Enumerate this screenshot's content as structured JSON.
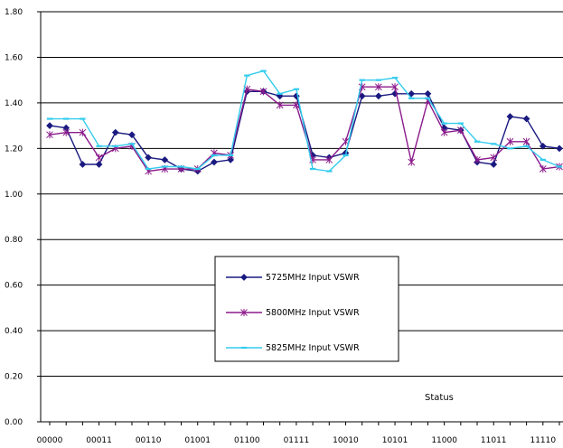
{
  "chart_data": {
    "type": "line",
    "title": "",
    "xlabel": "Status",
    "ylabel": "",
    "ylim": [
      0,
      1.8
    ],
    "yticks": [
      "0.00",
      "0.20",
      "0.40",
      "0.60",
      "0.80",
      "1.00",
      "1.20",
      "1.40",
      "1.60",
      "1.80"
    ],
    "x_tick_labels": [
      "00000",
      "00011",
      "00110",
      "01001",
      "01100",
      "01111",
      "10010",
      "10101",
      "11000",
      "11011",
      "11110"
    ],
    "grid": "horizontal",
    "legend_position": "center",
    "x": [
      "00000",
      "00001",
      "00010",
      "00011",
      "00100",
      "00101",
      "00110",
      "00111",
      "01000",
      "01001",
      "01010",
      "01011",
      "01100",
      "01101",
      "01110",
      "01111",
      "10000",
      "10001",
      "10010",
      "10011",
      "10100",
      "10101",
      "10110",
      "10111",
      "11000",
      "11001",
      "11010",
      "11011",
      "11100",
      "11101",
      "11110",
      "11111"
    ],
    "series": [
      {
        "name": "5725MHz Input VSWR",
        "color": "#1a1a80",
        "marker": "diamond",
        "values": [
          1.3,
          1.29,
          1.13,
          1.13,
          1.27,
          1.26,
          1.16,
          1.15,
          1.11,
          1.1,
          1.14,
          1.15,
          1.45,
          1.45,
          1.43,
          1.43,
          1.17,
          1.16,
          1.18,
          1.43,
          1.43,
          1.44,
          1.44,
          1.44,
          1.29,
          1.28,
          1.14,
          1.13,
          1.34,
          1.33,
          1.21,
          1.2
        ]
      },
      {
        "name": "5800MHz Input VSWR",
        "color": "#8b1a8b",
        "marker": "star",
        "values": [
          1.26,
          1.27,
          1.27,
          1.16,
          1.2,
          1.21,
          1.1,
          1.11,
          1.11,
          1.11,
          1.18,
          1.17,
          1.46,
          1.45,
          1.39,
          1.39,
          1.15,
          1.15,
          1.23,
          1.47,
          1.47,
          1.47,
          1.14,
          1.41,
          1.27,
          1.28,
          1.15,
          1.16,
          1.23,
          1.23,
          1.11,
          1.12
        ]
      },
      {
        "name": "5825MHz Input VSWR",
        "color": "#33ccee",
        "marker": "dash",
        "values": [
          1.33,
          1.33,
          1.33,
          1.21,
          1.21,
          1.22,
          1.11,
          1.12,
          1.12,
          1.11,
          1.17,
          1.17,
          1.52,
          1.54,
          1.44,
          1.46,
          1.11,
          1.1,
          1.17,
          1.5,
          1.5,
          1.51,
          1.42,
          1.42,
          1.31,
          1.31,
          1.23,
          1.22,
          1.2,
          1.21,
          1.15,
          1.12
        ]
      }
    ]
  }
}
